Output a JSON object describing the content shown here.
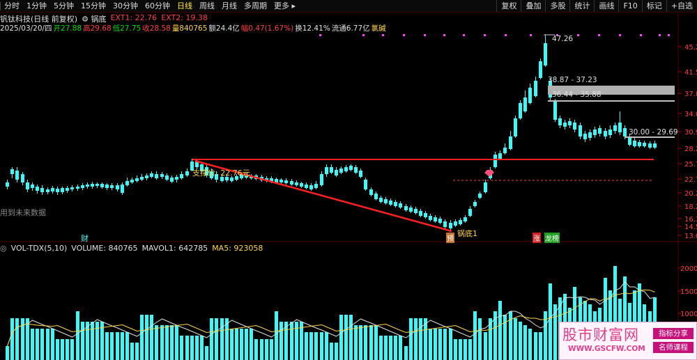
{
  "toolbar": {
    "periods": [
      "分时",
      "1分钟",
      "5分钟",
      "15分钟",
      "30分钟",
      "60分钟",
      "日线",
      "周线",
      "月线",
      "多周期",
      "更多"
    ],
    "active": "日线",
    "buttons": [
      "复权",
      "叠加",
      "多股",
      "统计",
      "画线",
      "F10",
      "标记",
      "+自选"
    ]
  },
  "stock": {
    "name": "钒钛科技(日线 前复权)",
    "indicator": "锅底",
    "ext1": "EXT1: 22.76",
    "ext2": "EXT2: 19.38",
    "date": "2025/03/20/四",
    "open": "开27.88",
    "high": "高29.68",
    "low": "低27.75",
    "close": "收28.58",
    "volume": "量840765",
    "amount": "额24.4亿",
    "change": "幅0.47(1.67%)",
    "turnover": "换12.41%",
    "float": "流通6.77亿",
    "sector": "氯碱"
  },
  "chart_labels": {
    "support": "支撑价: 22.76元",
    "max_price": "47.26",
    "range1": "38.87 - 37.23",
    "range2": "36.44 - 35.88",
    "range3": "30.00 - 29.69",
    "future": "用到未来数据",
    "cai": "财",
    "guodi": "锅底1",
    "pin": "预",
    "zhang": "涨",
    "longhu": "龙榜"
  },
  "price_axis": [
    "45.2",
    "41.5",
    "37.8",
    "34.0",
    "30.9",
    "28.2",
    "25.7",
    "22.7",
    "20.2",
    "18.2",
    "16.3",
    "14.5",
    "13.0"
  ],
  "volume": {
    "title": "VOL-TDX(5,10)",
    "volume": "VOLUME: 840765",
    "mavol1": "MAVOL1: 642785",
    "ma5": "MA5: 923058",
    "axis": [
      "2000",
      "1500",
      "1000"
    ]
  },
  "logo": {
    "text": "股市财富网",
    "url": "WWW.GSCFW.COM",
    "tag1": "指标分享",
    "tag2": "名师课程"
  },
  "colors": {
    "up": "#ff4040",
    "down": "#3ff7f7",
    "support_line": "#ff2020",
    "grid": "#3a0000"
  }
}
